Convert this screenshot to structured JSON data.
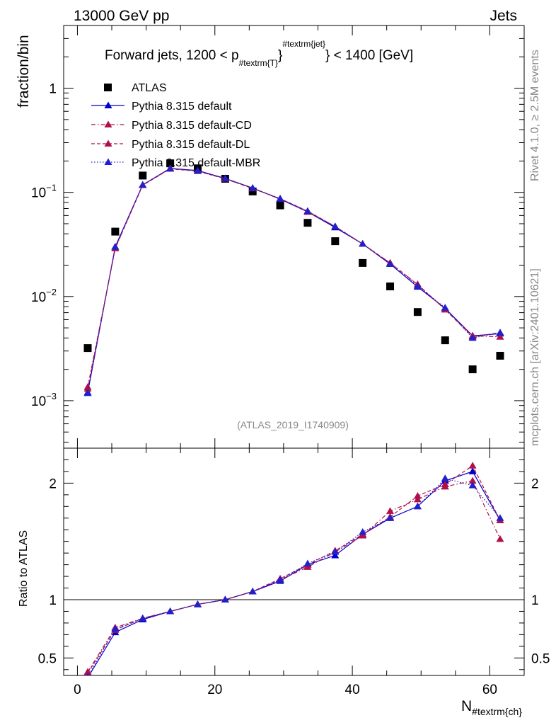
{
  "header": {
    "energy": "13000 GeV pp",
    "category": "Jets"
  },
  "side": {
    "rivet": "Rivet 4.1.0, ≥ 2.5M events",
    "source": "mcplots.cern.ch [arXiv:2401.10621]"
  },
  "chart_data": [
    {
      "type": "scatter",
      "title_prefix": "Forward jets, 1200 < p",
      "title_sub": "#textrm{T}",
      "title_sup": "#textrm{jet}",
      "title_suffix": "} < 1400 [GeV]",
      "ylabel": "fraction/bin",
      "yscale": "log",
      "ylim": [
        0.00035,
        4.0
      ],
      "xlim": [
        -2,
        65
      ],
      "yticks": [
        {
          "v": 0.001,
          "base": "10",
          "exp": "−3"
        },
        {
          "v": 0.01,
          "base": "10",
          "exp": "−2"
        },
        {
          "v": 0.1,
          "base": "10",
          "exp": "−1"
        },
        {
          "v": 1,
          "base": "1",
          "exp": ""
        }
      ],
      "analysis_label": "(ATLAS_2019_I1740909)",
      "x": [
        1.5,
        5.5,
        9.5,
        13.5,
        17.5,
        21.5,
        25.5,
        29.5,
        33.5,
        37.5,
        41.5,
        45.5,
        49.5,
        53.5,
        57.5,
        61.5
      ],
      "series": [
        {
          "name": "ATLAS",
          "style": "data",
          "color": "#000000",
          "values": [
            0.0032,
            0.042,
            0.145,
            0.19,
            0.17,
            0.135,
            0.102,
            0.075,
            0.051,
            0.034,
            0.021,
            0.0125,
            0.0071,
            0.0038,
            0.002,
            0.0027
          ]
        },
        {
          "name": "Pythia 8.315 default",
          "style": "solid",
          "color": "#0000cc",
          "values": [
            0.0012,
            0.03,
            0.118,
            0.17,
            0.162,
            0.136,
            0.11,
            0.086,
            0.065,
            0.046,
            0.032,
            0.0205,
            0.0124,
            0.0077,
            0.0042,
            0.0044
          ]
        },
        {
          "name": "Pythia 8.315 default-CD",
          "style": "dashdot",
          "color": "#b0104a",
          "values": [
            0.00135,
            0.029,
            0.118,
            0.17,
            0.16,
            0.135,
            0.109,
            0.087,
            0.065,
            0.047,
            0.032,
            0.021,
            0.0131,
            0.0075,
            0.0042,
            0.0041
          ]
        },
        {
          "name": "Pythia 8.315 default-DL",
          "style": "dashed",
          "color": "#b0104a",
          "values": [
            0.0013,
            0.029,
            0.117,
            0.168,
            0.16,
            0.135,
            0.109,
            0.087,
            0.066,
            0.047,
            0.032,
            0.021,
            0.013,
            0.0075,
            0.0041,
            0.0045
          ]
        },
        {
          "name": "Pythia 8.315 default-MBR",
          "style": "dotted",
          "color": "#2020cc",
          "values": [
            0.00118,
            0.03,
            0.118,
            0.169,
            0.161,
            0.136,
            0.11,
            0.087,
            0.066,
            0.047,
            0.032,
            0.0205,
            0.0126,
            0.0078,
            0.004,
            0.0045
          ]
        }
      ]
    },
    {
      "type": "scatter",
      "ylabel": "Ratio to ATLAS",
      "xlabel_main": "N",
      "xlabel_sub": "#textrm{ch}",
      "ylim": [
        0.35,
        2.3
      ],
      "xlim": [
        -2,
        65
      ],
      "xticks": [
        0,
        20,
        40,
        60
      ],
      "yticks": [
        0.5,
        1,
        2
      ],
      "reference": 1,
      "x": [
        1.5,
        5.5,
        9.5,
        13.5,
        17.5,
        21.5,
        25.5,
        29.5,
        33.5,
        37.5,
        41.5,
        45.5,
        49.5,
        53.5,
        57.5,
        61.5
      ],
      "series": [
        {
          "name": "Pythia 8.315 default",
          "style": "solid",
          "color": "#0000cc",
          "values": [
            0.33,
            0.72,
            0.83,
            0.9,
            0.96,
            1.0,
            1.07,
            1.16,
            1.3,
            1.38,
            1.56,
            1.7,
            1.8,
            2.02,
            2.1,
            1.68
          ]
        },
        {
          "name": "Pythia 8.315 default-CD",
          "style": "dashdot",
          "color": "#b0104a",
          "values": [
            0.38,
            0.76,
            0.84,
            0.9,
            0.96,
            1.0,
            1.07,
            1.17,
            1.28,
            1.41,
            1.55,
            1.76,
            1.86,
            1.97,
            2.02,
            1.52
          ]
        },
        {
          "name": "Pythia 8.315 default-DL",
          "style": "dashed",
          "color": "#b0104a",
          "values": [
            0.37,
            0.74,
            0.84,
            0.9,
            0.96,
            1.0,
            1.07,
            1.18,
            1.3,
            1.42,
            1.56,
            1.71,
            1.89,
            1.99,
            2.15,
            1.68
          ]
        },
        {
          "name": "Pythia 8.315 default-MBR",
          "style": "dotted",
          "color": "#2020cc",
          "values": [
            0.34,
            0.75,
            0.84,
            0.9,
            0.96,
            1.0,
            1.07,
            1.17,
            1.31,
            1.41,
            1.58,
            1.7,
            1.8,
            2.04,
            1.98,
            1.7
          ]
        }
      ]
    }
  ]
}
